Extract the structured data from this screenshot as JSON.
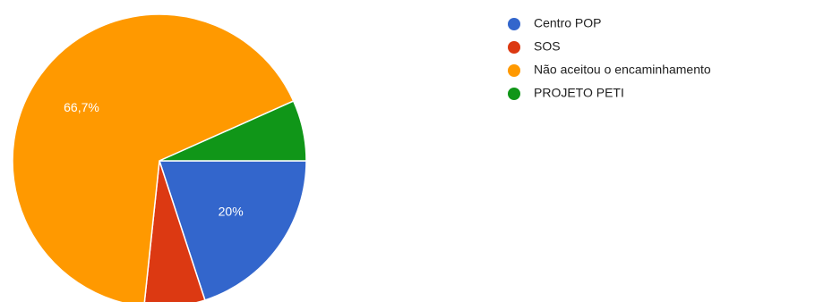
{
  "chart_data": {
    "type": "pie",
    "legend_position": "right",
    "slices": [
      {
        "name": "Centro POP",
        "value": 20.0,
        "color": "#3366cc",
        "label": "20%"
      },
      {
        "name": "SOS",
        "value": 6.7,
        "color": "#dc3912",
        "label": ""
      },
      {
        "name": "Não aceitou o encaminhamento",
        "value": 66.7,
        "color": "#ff9900",
        "label": "66,7%"
      },
      {
        "name": "PROJETO PETI",
        "value": 6.7,
        "color": "#109618",
        "label": ""
      }
    ]
  }
}
